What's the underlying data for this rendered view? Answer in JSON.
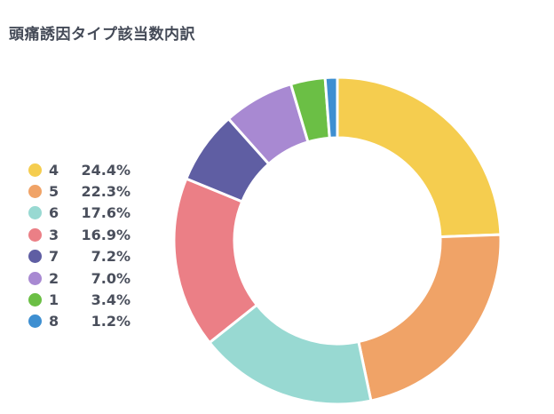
{
  "chart_data": {
    "type": "pie",
    "title": "頭痛誘因タイプ該当数内訳",
    "legend_position": "left",
    "categories": [
      "4",
      "5",
      "6",
      "3",
      "7",
      "2",
      "1",
      "8"
    ],
    "values": [
      24.4,
      22.3,
      17.6,
      16.9,
      7.2,
      7.0,
      3.4,
      1.2
    ],
    "labels": [
      "24.4%",
      "22.3%",
      "17.6%",
      "16.9%",
      "7.2%",
      "7.0%",
      "3.4%",
      "1.2%"
    ],
    "colors": [
      "#f5cd4f",
      "#f0a367",
      "#98d9d2",
      "#eb7f86",
      "#5f5ea3",
      "#a889d2",
      "#6bbf45",
      "#3e8fd1"
    ],
    "donut": true
  }
}
